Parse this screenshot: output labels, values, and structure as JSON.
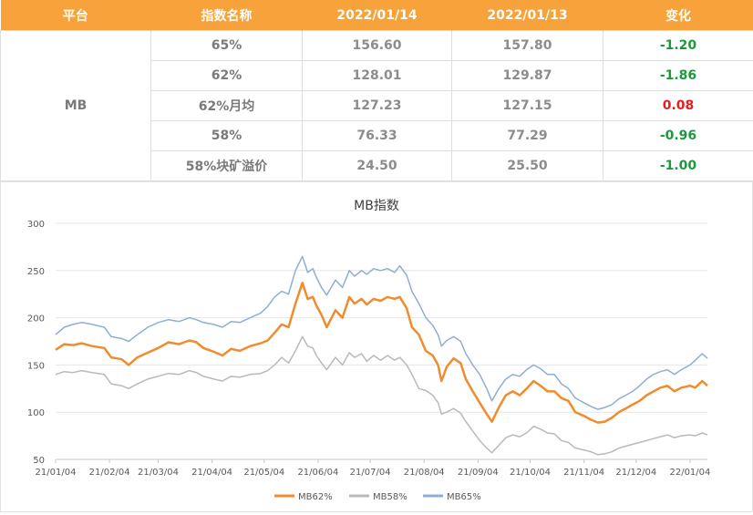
{
  "table": {
    "headers": [
      "平台",
      "指数名称",
      "2022/01/14",
      "2022/01/13",
      "变化"
    ],
    "platform": "MB",
    "rows": [
      {
        "name": "65%",
        "v14": "156.60",
        "v13": "157.80",
        "change": "-1.20"
      },
      {
        "name": "62%",
        "v14": "128.01",
        "v13": "129.87",
        "change": "-1.86"
      },
      {
        "name": "62%月均",
        "v14": "127.23",
        "v13": "127.15",
        "change": "0.08"
      },
      {
        "name": "58%",
        "v14": "76.33",
        "v13": "77.29",
        "change": "-0.96"
      },
      {
        "name": "58%块矿溢价",
        "v14": "24.50",
        "v13": "25.50",
        "change": "-1.00"
      }
    ],
    "colors": {
      "header_bg": "#f7a23b",
      "negative": "#1a9a3c",
      "positive": "#e81c1c"
    }
  },
  "chart_data": {
    "type": "line",
    "title": "MB指数",
    "ylim": [
      50,
      300
    ],
    "yticks": [
      50,
      100,
      150,
      200,
      250,
      300
    ],
    "grid": true,
    "legend_position": "bottom",
    "x_start": "2021-01-04",
    "x_end": "2022-01-14",
    "xticks": [
      "21/01/04",
      "21/02/04",
      "21/03/04",
      "21/04/04",
      "21/05/04",
      "21/06/04",
      "21/07/04",
      "21/08/04",
      "21/09/04",
      "21/10/04",
      "21/11/04",
      "21/12/04",
      "22/01/04"
    ],
    "series": [
      {
        "name": "MB62%",
        "color": "#f08c2e",
        "points": [
          [
            "2021-01-04",
            166
          ],
          [
            "2021-01-09",
            172
          ],
          [
            "2021-01-14",
            171
          ],
          [
            "2021-01-19",
            173
          ],
          [
            "2021-01-25",
            170
          ],
          [
            "2021-02-01",
            168
          ],
          [
            "2021-02-05",
            158
          ],
          [
            "2021-02-11",
            156
          ],
          [
            "2021-02-15",
            150
          ],
          [
            "2021-02-20",
            158
          ],
          [
            "2021-02-26",
            163
          ],
          [
            "2021-03-04",
            168
          ],
          [
            "2021-03-10",
            174
          ],
          [
            "2021-03-16",
            172
          ],
          [
            "2021-03-22",
            176
          ],
          [
            "2021-03-26",
            174
          ],
          [
            "2021-03-30",
            168
          ],
          [
            "2021-04-05",
            164
          ],
          [
            "2021-04-10",
            160
          ],
          [
            "2021-04-15",
            167
          ],
          [
            "2021-04-20",
            165
          ],
          [
            "2021-04-26",
            170
          ],
          [
            "2021-05-02",
            173
          ],
          [
            "2021-05-06",
            176
          ],
          [
            "2021-05-10",
            184
          ],
          [
            "2021-05-14",
            193
          ],
          [
            "2021-05-18",
            190
          ],
          [
            "2021-05-22",
            215
          ],
          [
            "2021-05-26",
            237
          ],
          [
            "2021-05-29",
            220
          ],
          [
            "2021-06-01",
            222
          ],
          [
            "2021-06-03",
            213
          ],
          [
            "2021-06-06",
            203
          ],
          [
            "2021-06-09",
            190
          ],
          [
            "2021-06-14",
            208
          ],
          [
            "2021-06-18",
            200
          ],
          [
            "2021-06-22",
            222
          ],
          [
            "2021-06-25",
            215
          ],
          [
            "2021-06-29",
            220
          ],
          [
            "2021-07-02",
            214
          ],
          [
            "2021-07-06",
            220
          ],
          [
            "2021-07-10",
            218
          ],
          [
            "2021-07-14",
            222
          ],
          [
            "2021-07-18",
            220
          ],
          [
            "2021-07-21",
            222
          ],
          [
            "2021-07-25",
            210
          ],
          [
            "2021-07-28",
            190
          ],
          [
            "2021-08-01",
            182
          ],
          [
            "2021-08-05",
            165
          ],
          [
            "2021-08-09",
            160
          ],
          [
            "2021-08-12",
            150
          ],
          [
            "2021-08-14",
            133
          ],
          [
            "2021-08-17",
            148
          ],
          [
            "2021-08-21",
            157
          ],
          [
            "2021-08-25",
            152
          ],
          [
            "2021-08-28",
            135
          ],
          [
            "2021-09-01",
            122
          ],
          [
            "2021-09-05",
            110
          ],
          [
            "2021-09-09",
            98
          ],
          [
            "2021-09-12",
            90
          ],
          [
            "2021-09-16",
            105
          ],
          [
            "2021-09-20",
            118
          ],
          [
            "2021-09-24",
            122
          ],
          [
            "2021-09-28",
            118
          ],
          [
            "2021-10-02",
            125
          ],
          [
            "2021-10-06",
            133
          ],
          [
            "2021-10-10",
            128
          ],
          [
            "2021-10-14",
            122
          ],
          [
            "2021-10-18",
            122
          ],
          [
            "2021-10-22",
            115
          ],
          [
            "2021-10-26",
            112
          ],
          [
            "2021-10-30",
            100
          ],
          [
            "2021-11-04",
            96
          ],
          [
            "2021-11-08",
            92
          ],
          [
            "2021-11-12",
            89
          ],
          [
            "2021-11-16",
            90
          ],
          [
            "2021-11-20",
            94
          ],
          [
            "2021-11-24",
            100
          ],
          [
            "2021-11-28",
            104
          ],
          [
            "2021-12-02",
            108
          ],
          [
            "2021-12-06",
            112
          ],
          [
            "2021-12-10",
            118
          ],
          [
            "2021-12-14",
            122
          ],
          [
            "2021-12-18",
            126
          ],
          [
            "2021-12-22",
            128
          ],
          [
            "2021-12-26",
            122
          ],
          [
            "2021-12-30",
            126
          ],
          [
            "2022-01-04",
            128
          ],
          [
            "2022-01-07",
            126
          ],
          [
            "2022-01-11",
            133
          ],
          [
            "2022-01-14",
            128
          ]
        ]
      },
      {
        "name": "MB58%",
        "color": "#b9b9b9",
        "points": [
          [
            "2021-01-04",
            140
          ],
          [
            "2021-01-09",
            143
          ],
          [
            "2021-01-14",
            142
          ],
          [
            "2021-01-19",
            144
          ],
          [
            "2021-01-25",
            142
          ],
          [
            "2021-02-01",
            140
          ],
          [
            "2021-02-05",
            130
          ],
          [
            "2021-02-11",
            128
          ],
          [
            "2021-02-15",
            125
          ],
          [
            "2021-02-20",
            130
          ],
          [
            "2021-02-26",
            135
          ],
          [
            "2021-03-04",
            138
          ],
          [
            "2021-03-10",
            141
          ],
          [
            "2021-03-16",
            140
          ],
          [
            "2021-03-22",
            144
          ],
          [
            "2021-03-26",
            142
          ],
          [
            "2021-03-30",
            138
          ],
          [
            "2021-04-05",
            135
          ],
          [
            "2021-04-10",
            133
          ],
          [
            "2021-04-15",
            138
          ],
          [
            "2021-04-20",
            137
          ],
          [
            "2021-04-26",
            140
          ],
          [
            "2021-05-02",
            141
          ],
          [
            "2021-05-06",
            144
          ],
          [
            "2021-05-10",
            150
          ],
          [
            "2021-05-14",
            158
          ],
          [
            "2021-05-18",
            152
          ],
          [
            "2021-05-22",
            165
          ],
          [
            "2021-05-26",
            180
          ],
          [
            "2021-05-29",
            170
          ],
          [
            "2021-06-01",
            168
          ],
          [
            "2021-06-03",
            160
          ],
          [
            "2021-06-06",
            152
          ],
          [
            "2021-06-09",
            145
          ],
          [
            "2021-06-14",
            158
          ],
          [
            "2021-06-18",
            150
          ],
          [
            "2021-06-22",
            163
          ],
          [
            "2021-06-25",
            158
          ],
          [
            "2021-06-29",
            162
          ],
          [
            "2021-07-02",
            154
          ],
          [
            "2021-07-06",
            160
          ],
          [
            "2021-07-10",
            155
          ],
          [
            "2021-07-14",
            160
          ],
          [
            "2021-07-18",
            155
          ],
          [
            "2021-07-21",
            158
          ],
          [
            "2021-07-25",
            150
          ],
          [
            "2021-07-28",
            140
          ],
          [
            "2021-08-01",
            125
          ],
          [
            "2021-08-05",
            123
          ],
          [
            "2021-08-09",
            118
          ],
          [
            "2021-08-12",
            110
          ],
          [
            "2021-08-14",
            98
          ],
          [
            "2021-08-17",
            100
          ],
          [
            "2021-08-21",
            104
          ],
          [
            "2021-08-25",
            99
          ],
          [
            "2021-08-28",
            90
          ],
          [
            "2021-09-01",
            80
          ],
          [
            "2021-09-05",
            70
          ],
          [
            "2021-09-09",
            62
          ],
          [
            "2021-09-12",
            57
          ],
          [
            "2021-09-16",
            65
          ],
          [
            "2021-09-20",
            73
          ],
          [
            "2021-09-24",
            76
          ],
          [
            "2021-09-28",
            74
          ],
          [
            "2021-10-02",
            78
          ],
          [
            "2021-10-06",
            85
          ],
          [
            "2021-10-10",
            82
          ],
          [
            "2021-10-14",
            78
          ],
          [
            "2021-10-18",
            77
          ],
          [
            "2021-10-22",
            70
          ],
          [
            "2021-10-26",
            68
          ],
          [
            "2021-10-30",
            62
          ],
          [
            "2021-11-04",
            60
          ],
          [
            "2021-11-08",
            58
          ],
          [
            "2021-11-12",
            55
          ],
          [
            "2021-11-16",
            56
          ],
          [
            "2021-11-20",
            58
          ],
          [
            "2021-11-24",
            62
          ],
          [
            "2021-11-28",
            64
          ],
          [
            "2021-12-02",
            66
          ],
          [
            "2021-12-06",
            68
          ],
          [
            "2021-12-10",
            70
          ],
          [
            "2021-12-14",
            72
          ],
          [
            "2021-12-18",
            74
          ],
          [
            "2021-12-22",
            76
          ],
          [
            "2021-12-26",
            73
          ],
          [
            "2021-12-30",
            75
          ],
          [
            "2022-01-04",
            76
          ],
          [
            "2022-01-07",
            75
          ],
          [
            "2022-01-11",
            78
          ],
          [
            "2022-01-14",
            76
          ]
        ]
      },
      {
        "name": "MB65%",
        "color": "#8eaed3",
        "points": [
          [
            "2021-01-04",
            182
          ],
          [
            "2021-01-09",
            190
          ],
          [
            "2021-01-14",
            193
          ],
          [
            "2021-01-19",
            195
          ],
          [
            "2021-01-25",
            193
          ],
          [
            "2021-02-01",
            190
          ],
          [
            "2021-02-05",
            180
          ],
          [
            "2021-02-11",
            178
          ],
          [
            "2021-02-15",
            175
          ],
          [
            "2021-02-20",
            182
          ],
          [
            "2021-02-26",
            190
          ],
          [
            "2021-03-04",
            195
          ],
          [
            "2021-03-10",
            198
          ],
          [
            "2021-03-16",
            196
          ],
          [
            "2021-03-22",
            200
          ],
          [
            "2021-03-26",
            198
          ],
          [
            "2021-03-30",
            195
          ],
          [
            "2021-04-05",
            193
          ],
          [
            "2021-04-10",
            190
          ],
          [
            "2021-04-15",
            196
          ],
          [
            "2021-04-20",
            195
          ],
          [
            "2021-04-26",
            200
          ],
          [
            "2021-05-02",
            205
          ],
          [
            "2021-05-06",
            212
          ],
          [
            "2021-05-10",
            222
          ],
          [
            "2021-05-14",
            228
          ],
          [
            "2021-05-18",
            225
          ],
          [
            "2021-05-22",
            250
          ],
          [
            "2021-05-26",
            265
          ],
          [
            "2021-05-29",
            248
          ],
          [
            "2021-06-01",
            252
          ],
          [
            "2021-06-03",
            243
          ],
          [
            "2021-06-06",
            232
          ],
          [
            "2021-06-09",
            224
          ],
          [
            "2021-06-14",
            240
          ],
          [
            "2021-06-18",
            232
          ],
          [
            "2021-06-22",
            250
          ],
          [
            "2021-06-25",
            244
          ],
          [
            "2021-06-29",
            250
          ],
          [
            "2021-07-02",
            246
          ],
          [
            "2021-07-06",
            252
          ],
          [
            "2021-07-10",
            250
          ],
          [
            "2021-07-14",
            252
          ],
          [
            "2021-07-18",
            248
          ],
          [
            "2021-07-21",
            255
          ],
          [
            "2021-07-25",
            245
          ],
          [
            "2021-07-28",
            228
          ],
          [
            "2021-08-01",
            215
          ],
          [
            "2021-08-05",
            200
          ],
          [
            "2021-08-09",
            192
          ],
          [
            "2021-08-12",
            182
          ],
          [
            "2021-08-14",
            170
          ],
          [
            "2021-08-17",
            176
          ],
          [
            "2021-08-21",
            180
          ],
          [
            "2021-08-25",
            175
          ],
          [
            "2021-08-28",
            162
          ],
          [
            "2021-09-01",
            150
          ],
          [
            "2021-09-05",
            140
          ],
          [
            "2021-09-09",
            125
          ],
          [
            "2021-09-12",
            112
          ],
          [
            "2021-09-16",
            125
          ],
          [
            "2021-09-20",
            135
          ],
          [
            "2021-09-24",
            140
          ],
          [
            "2021-09-28",
            138
          ],
          [
            "2021-10-02",
            145
          ],
          [
            "2021-10-06",
            150
          ],
          [
            "2021-10-10",
            146
          ],
          [
            "2021-10-14",
            140
          ],
          [
            "2021-10-18",
            140
          ],
          [
            "2021-10-22",
            130
          ],
          [
            "2021-10-26",
            125
          ],
          [
            "2021-10-30",
            115
          ],
          [
            "2021-11-04",
            110
          ],
          [
            "2021-11-08",
            106
          ],
          [
            "2021-11-12",
            103
          ],
          [
            "2021-11-16",
            105
          ],
          [
            "2021-11-20",
            108
          ],
          [
            "2021-11-24",
            114
          ],
          [
            "2021-11-28",
            118
          ],
          [
            "2021-12-02",
            122
          ],
          [
            "2021-12-06",
            128
          ],
          [
            "2021-12-10",
            135
          ],
          [
            "2021-12-14",
            140
          ],
          [
            "2021-12-18",
            143
          ],
          [
            "2021-12-22",
            145
          ],
          [
            "2021-12-26",
            140
          ],
          [
            "2021-12-30",
            145
          ],
          [
            "2022-01-04",
            150
          ],
          [
            "2022-01-07",
            155
          ],
          [
            "2022-01-11",
            162
          ],
          [
            "2022-01-14",
            157
          ]
        ]
      }
    ]
  }
}
